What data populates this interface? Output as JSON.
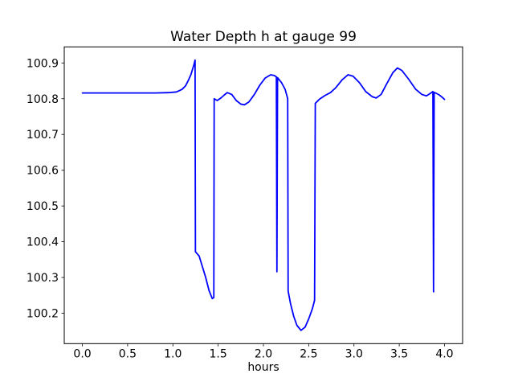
{
  "chart_data": {
    "type": "line",
    "title": "Water Depth h at gauge 99",
    "xlabel": "hours",
    "ylabel": "",
    "grid": false,
    "legend": null,
    "xlim": [
      -0.2,
      4.2
    ],
    "ylim": [
      100.115,
      100.945
    ],
    "x_ticks": [
      "0.0",
      "0.5",
      "1.0",
      "1.5",
      "2.0",
      "2.5",
      "3.0",
      "3.5",
      "4.0"
    ],
    "y_ticks": [
      "100.2",
      "100.3",
      "100.4",
      "100.5",
      "100.6",
      "100.7",
      "100.8",
      "100.9"
    ],
    "line_color": "#0000ff",
    "axis_color": "#000000",
    "background_color": "#ffffff",
    "series": [
      {
        "name": "water depth h",
        "points": [
          [
            0.0,
            100.816
          ],
          [
            0.4,
            100.816
          ],
          [
            0.8,
            100.816
          ],
          [
            0.95,
            100.817
          ],
          [
            1.04,
            100.819
          ],
          [
            1.1,
            100.826
          ],
          [
            1.14,
            100.836
          ],
          [
            1.17,
            100.851
          ],
          [
            1.2,
            100.868
          ],
          [
            1.23,
            100.893
          ],
          [
            1.245,
            100.908
          ],
          [
            1.249,
            100.372
          ],
          [
            1.29,
            100.36
          ],
          [
            1.325,
            100.331
          ],
          [
            1.36,
            100.302
          ],
          [
            1.4,
            100.263
          ],
          [
            1.435,
            100.241
          ],
          [
            1.452,
            100.244
          ],
          [
            1.456,
            100.8
          ],
          [
            1.49,
            100.795
          ],
          [
            1.53,
            100.802
          ],
          [
            1.57,
            100.811
          ],
          [
            1.6,
            100.817
          ],
          [
            1.65,
            100.812
          ],
          [
            1.7,
            100.795
          ],
          [
            1.75,
            100.785
          ],
          [
            1.79,
            100.783
          ],
          [
            1.84,
            100.791
          ],
          [
            1.9,
            100.812
          ],
          [
            1.96,
            100.838
          ],
          [
            2.02,
            100.858
          ],
          [
            2.08,
            100.867
          ],
          [
            2.12,
            100.865
          ],
          [
            2.143,
            100.861
          ],
          [
            2.149,
            100.316
          ],
          [
            2.156,
            100.859
          ],
          [
            2.2,
            100.845
          ],
          [
            2.24,
            100.826
          ],
          [
            2.268,
            100.8
          ],
          [
            2.273,
            100.262
          ],
          [
            2.3,
            100.226
          ],
          [
            2.335,
            100.191
          ],
          [
            2.37,
            100.166
          ],
          [
            2.415,
            100.152
          ],
          [
            2.46,
            100.161
          ],
          [
            2.5,
            100.184
          ],
          [
            2.54,
            100.212
          ],
          [
            2.565,
            100.236
          ],
          [
            2.573,
            100.787
          ],
          [
            2.62,
            100.799
          ],
          [
            2.68,
            100.809
          ],
          [
            2.74,
            100.817
          ],
          [
            2.8,
            100.831
          ],
          [
            2.87,
            100.853
          ],
          [
            2.935,
            100.867
          ],
          [
            2.99,
            100.863
          ],
          [
            3.06,
            100.845
          ],
          [
            3.13,
            100.82
          ],
          [
            3.2,
            100.806
          ],
          [
            3.245,
            100.802
          ],
          [
            3.3,
            100.812
          ],
          [
            3.36,
            100.841
          ],
          [
            3.43,
            100.873
          ],
          [
            3.48,
            100.886
          ],
          [
            3.53,
            100.879
          ],
          [
            3.6,
            100.856
          ],
          [
            3.68,
            100.827
          ],
          [
            3.75,
            100.812
          ],
          [
            3.8,
            100.808
          ],
          [
            3.85,
            100.816
          ],
          [
            3.872,
            100.82
          ],
          [
            3.879,
            100.26
          ],
          [
            3.886,
            100.818
          ],
          [
            3.94,
            100.811
          ],
          [
            3.98,
            100.803
          ],
          [
            4.0,
            100.798
          ]
        ]
      }
    ]
  }
}
